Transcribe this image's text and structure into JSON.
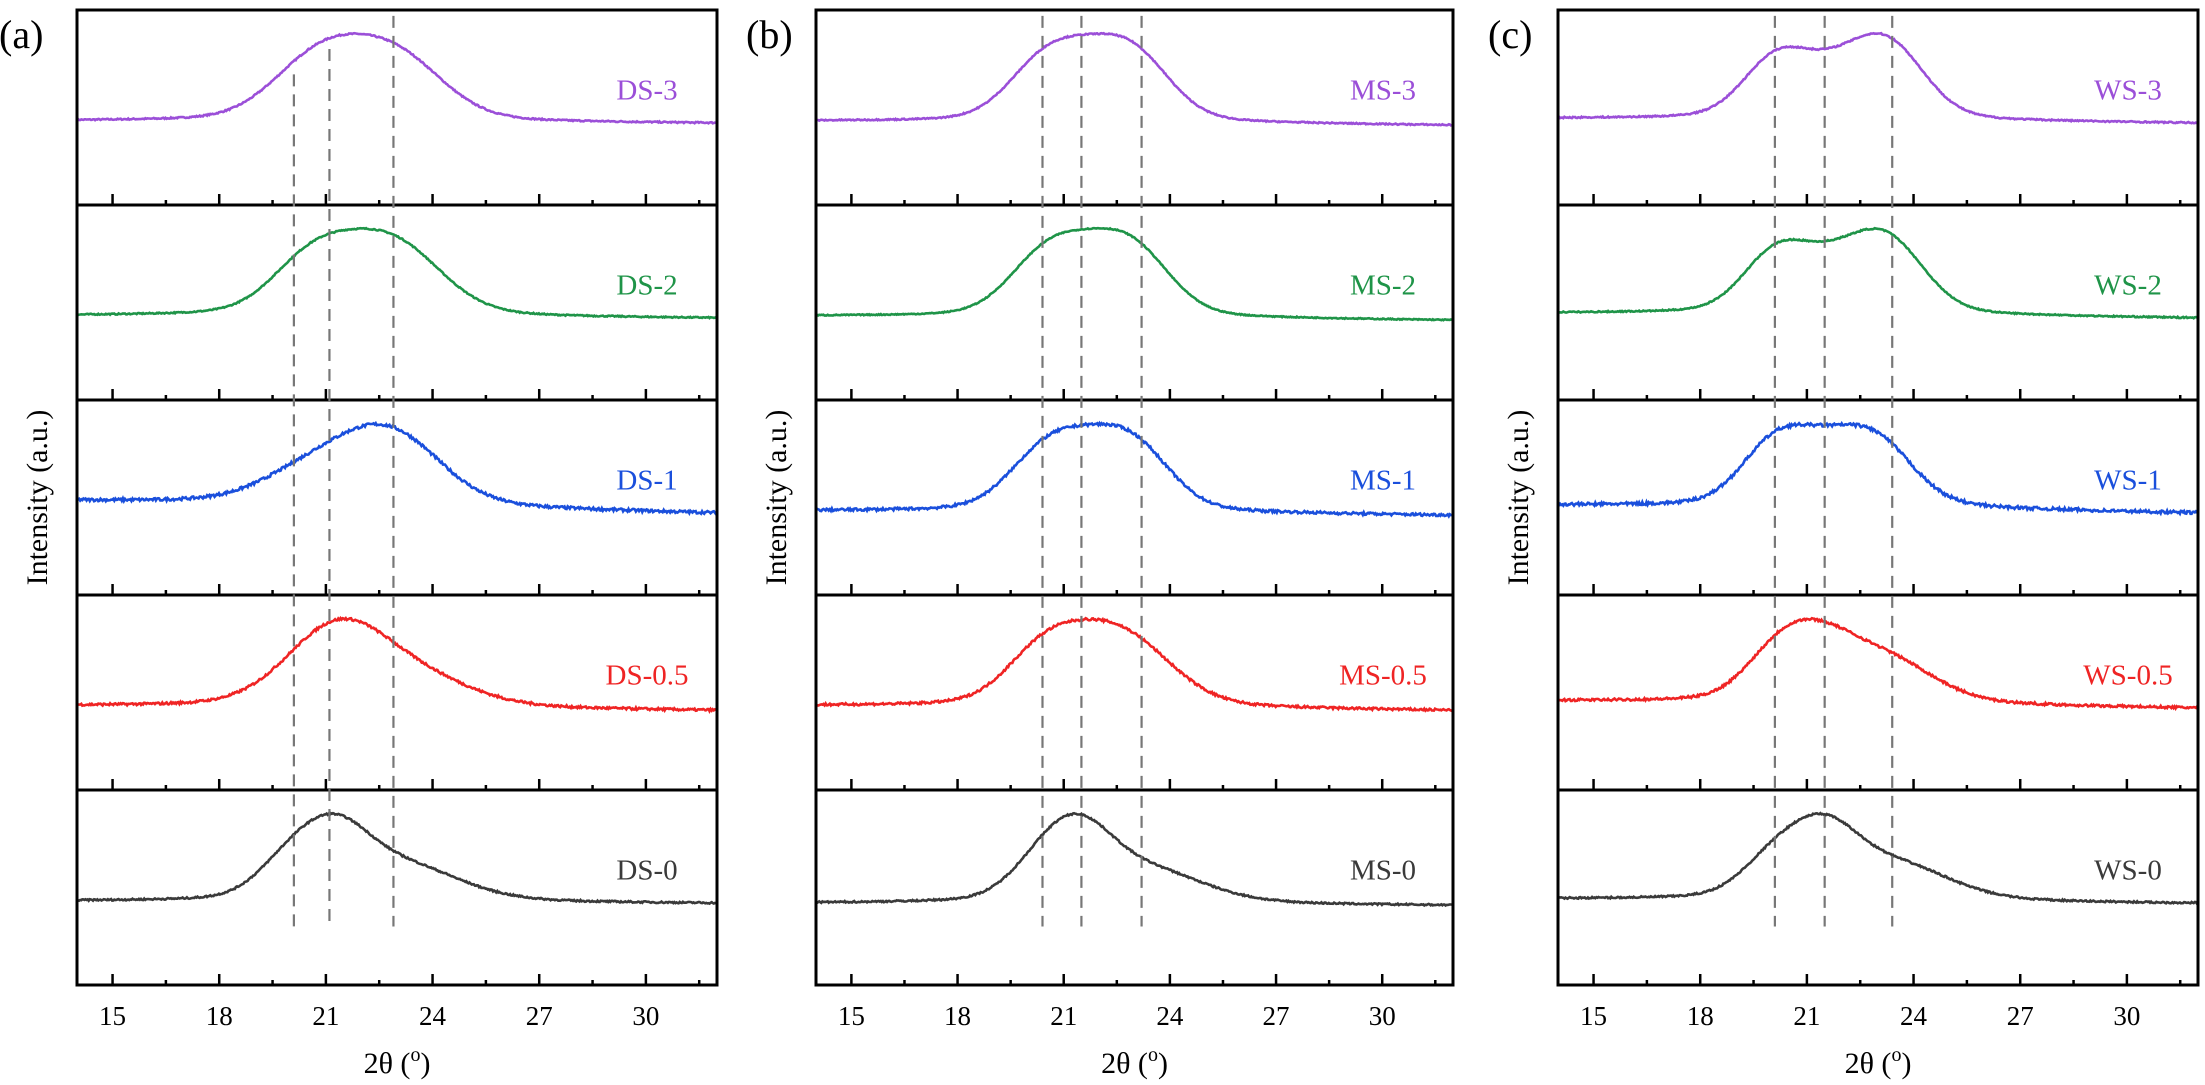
{
  "figure": {
    "ylabel": "Intensity (a.u.)",
    "xlabel": "2θ (",
    "xlabel_sup": "o",
    "xlabel_end": ")"
  },
  "colors": {
    "3": "#9b4fd8",
    "2": "#1f9448",
    "1": "#1a4fdc",
    "0.5": "#ef2424",
    "0": "#3a3a3a",
    "dash": "#777777"
  },
  "chart_data": [
    {
      "type": "line",
      "panel_label": "(a)",
      "title": "",
      "xlabel": "2θ (°)",
      "ylabel": "Intensity (a.u.)",
      "xlim": [
        14,
        32
      ],
      "x_ticks": [
        15,
        18,
        21,
        24,
        27,
        30
      ],
      "stacked": true,
      "dashed_lines_x": [
        20.1,
        21.1,
        22.9
      ],
      "series": [
        {
          "name": "DS-3",
          "level": "3",
          "baseline_left": 0.1,
          "baseline_right": 0.08,
          "peaks": [
            {
              "x": 20.3,
              "h": 0.3,
              "w": 1.1
            },
            {
              "x": 21.3,
              "h": 0.2,
              "w": 1.0
            },
            {
              "x": 22.9,
              "h": 0.52,
              "w": 1.3
            }
          ]
        },
        {
          "name": "DS-2",
          "level": "2",
          "baseline_left": 0.1,
          "baseline_right": 0.08,
          "peaks": [
            {
              "x": 20.3,
              "h": 0.28,
              "w": 1.0
            },
            {
              "x": 21.3,
              "h": 0.18,
              "w": 1.0
            },
            {
              "x": 22.9,
              "h": 0.52,
              "w": 1.3
            }
          ]
        },
        {
          "name": "DS-1",
          "level": "1",
          "baseline_left": 0.18,
          "baseline_right": 0.08,
          "peaks": [
            {
              "x": 20.5,
              "h": 0.2,
              "w": 1.3
            },
            {
              "x": 22.3,
              "h": 0.25,
              "w": 1.3
            },
            {
              "x": 23.2,
              "h": 0.3,
              "w": 1.3
            }
          ]
        },
        {
          "name": "DS-0.5",
          "level": "0.5",
          "baseline_left": 0.1,
          "baseline_right": 0.06,
          "peaks": [
            {
              "x": 20.4,
              "h": 0.18,
              "w": 1.2
            },
            {
              "x": 21.5,
              "h": 0.38,
              "w": 1.2
            },
            {
              "x": 23.2,
              "h": 0.25,
              "w": 1.6
            }
          ]
        },
        {
          "name": "DS-0",
          "level": "0",
          "baseline_left": 0.1,
          "baseline_right": 0.08,
          "peaks": [
            {
              "x": 20.0,
              "h": 0.32,
              "w": 0.9
            },
            {
              "x": 21.3,
              "h": 0.45,
              "w": 0.9
            },
            {
              "x": 23.0,
              "h": 0.3,
              "w": 1.6
            }
          ]
        }
      ]
    },
    {
      "type": "line",
      "panel_label": "(b)",
      "title": "",
      "xlabel": "2θ (°)",
      "ylabel": "Intensity (a.u.)",
      "xlim": [
        14,
        32
      ],
      "x_ticks": [
        15,
        18,
        21,
        24,
        27,
        30
      ],
      "stacked": true,
      "dashed_lines_x": [
        20.4,
        21.5,
        23.2
      ],
      "series": [
        {
          "name": "MS-3",
          "level": "3",
          "baseline_left": 0.1,
          "baseline_right": 0.06,
          "peaks": [
            {
              "x": 20.4,
              "h": 0.45,
              "w": 1.0
            },
            {
              "x": 21.8,
              "h": 0.4,
              "w": 1.1
            },
            {
              "x": 23.1,
              "h": 0.46,
              "w": 1.0
            }
          ]
        },
        {
          "name": "MS-2",
          "level": "2",
          "baseline_left": 0.1,
          "baseline_right": 0.06,
          "peaks": [
            {
              "x": 20.4,
              "h": 0.44,
              "w": 1.0
            },
            {
              "x": 21.8,
              "h": 0.4,
              "w": 1.1
            },
            {
              "x": 23.1,
              "h": 0.45,
              "w": 1.0
            }
          ]
        },
        {
          "name": "MS-1",
          "level": "1",
          "baseline_left": 0.1,
          "baseline_right": 0.06,
          "peaks": [
            {
              "x": 20.4,
              "h": 0.4,
              "w": 1.0
            },
            {
              "x": 21.8,
              "h": 0.37,
              "w": 1.1
            },
            {
              "x": 23.1,
              "h": 0.41,
              "w": 1.0
            }
          ]
        },
        {
          "name": "MS-0.5",
          "level": "0.5",
          "baseline_left": 0.1,
          "baseline_right": 0.06,
          "peaks": [
            {
              "x": 20.3,
              "h": 0.32,
              "w": 1.0
            },
            {
              "x": 21.8,
              "h": 0.38,
              "w": 1.2
            },
            {
              "x": 23.2,
              "h": 0.3,
              "w": 1.2
            }
          ]
        },
        {
          "name": "MS-0",
          "level": "0",
          "baseline_left": 0.08,
          "baseline_right": 0.06,
          "peaks": [
            {
              "x": 20.4,
              "h": 0.3,
              "w": 0.9
            },
            {
              "x": 21.5,
              "h": 0.45,
              "w": 0.9
            },
            {
              "x": 23.2,
              "h": 0.28,
              "w": 1.6
            }
          ]
        }
      ]
    },
    {
      "type": "line",
      "panel_label": "(c)",
      "title": "",
      "xlabel": "2θ (°)",
      "ylabel": "Intensity (a.u.)",
      "xlim": [
        14,
        32
      ],
      "x_ticks": [
        15,
        18,
        21,
        24,
        27,
        30
      ],
      "stacked": true,
      "dashed_lines_x": [
        20.1,
        21.5,
        23.4
      ],
      "series": [
        {
          "name": "WS-3",
          "level": "3",
          "baseline_left": 0.12,
          "baseline_right": 0.08,
          "peaks": [
            {
              "x": 20.1,
              "h": 0.45,
              "w": 0.9
            },
            {
              "x": 21.7,
              "h": 0.28,
              "w": 1.0
            },
            {
              "x": 23.3,
              "h": 0.58,
              "w": 1.0
            }
          ]
        },
        {
          "name": "WS-2",
          "level": "2",
          "baseline_left": 0.12,
          "baseline_right": 0.08,
          "peaks": [
            {
              "x": 20.1,
              "h": 0.42,
              "w": 0.9
            },
            {
              "x": 21.7,
              "h": 0.28,
              "w": 1.0
            },
            {
              "x": 23.3,
              "h": 0.52,
              "w": 1.0
            }
          ]
        },
        {
          "name": "WS-1",
          "level": "1",
          "baseline_left": 0.14,
          "baseline_right": 0.08,
          "peaks": [
            {
              "x": 20.0,
              "h": 0.38,
              "w": 0.9
            },
            {
              "x": 21.4,
              "h": 0.32,
              "w": 1.0
            },
            {
              "x": 23.0,
              "h": 0.42,
              "w": 1.0
            }
          ]
        },
        {
          "name": "WS-0.5",
          "level": "0.5",
          "baseline_left": 0.14,
          "baseline_right": 0.08,
          "peaks": [
            {
              "x": 20.1,
              "h": 0.3,
              "w": 0.9
            },
            {
              "x": 21.3,
              "h": 0.38,
              "w": 1.0
            },
            {
              "x": 23.2,
              "h": 0.32,
              "w": 1.3
            }
          ]
        },
        {
          "name": "WS-0",
          "level": "0",
          "baseline_left": 0.12,
          "baseline_right": 0.08,
          "peaks": [
            {
              "x": 20.1,
              "h": 0.34,
              "w": 0.9
            },
            {
              "x": 21.5,
              "h": 0.48,
              "w": 0.9
            },
            {
              "x": 23.4,
              "h": 0.3,
              "w": 1.5
            }
          ]
        }
      ]
    }
  ]
}
